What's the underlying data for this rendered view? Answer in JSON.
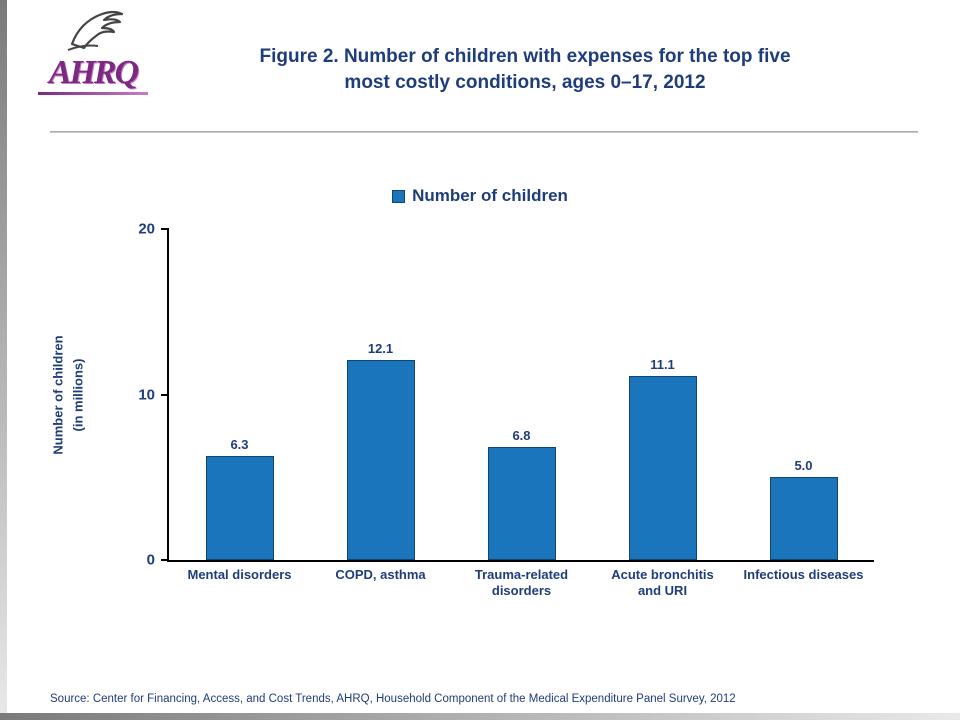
{
  "page": {
    "logo_text": "AHRQ",
    "title_line1": "Figure 2. Number of children with expenses for the top five",
    "title_line2": "most costly conditions, ages 0–17, 2012",
    "source": "Source: Center for Financing, Access, and Cost Trends, AHRQ, Household Component of the Medical Expenditure Panel Survey, 2012"
  },
  "colors": {
    "bar": "#1B75BC",
    "bar_border": "#10456E",
    "text_navy": "#1F3D7A",
    "logo_purple": "#7D2882"
  },
  "chart_data": {
    "type": "bar",
    "title": "Figure 2. Number of children with expenses for the top five most costly conditions, ages 0–17, 2012",
    "legend": [
      "Number of children"
    ],
    "legend_position": "top",
    "categories": [
      "Mental disorders",
      "COPD, asthma",
      "Trauma-related\ndisorders",
      "Acute bronchitis\nand URI",
      "Infectious diseases"
    ],
    "values": [
      6.3,
      12.1,
      6.8,
      11.1,
      5.0
    ],
    "value_labels": [
      "6.3",
      "12.1",
      "6.8",
      "11.1",
      "5.0"
    ],
    "xlabel": "",
    "ylabel": "Number of children\n(in millions)",
    "ylim": [
      0,
      20
    ],
    "yticks": [
      0,
      10,
      20
    ],
    "grid": false,
    "bar_color": "#1B75BC"
  }
}
